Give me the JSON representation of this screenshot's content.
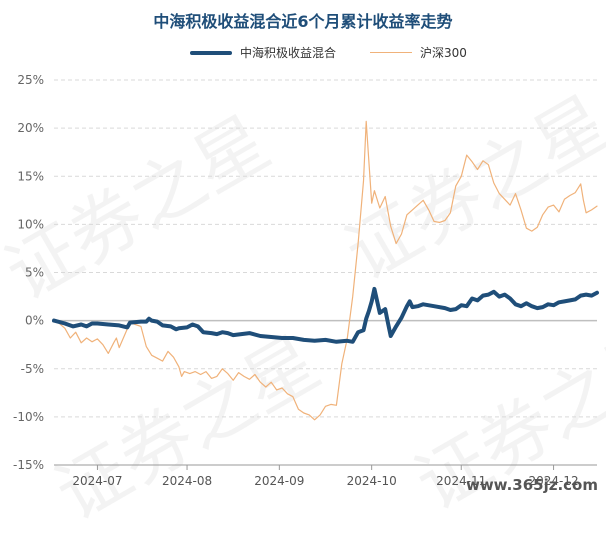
{
  "chart_data": {
    "type": "line",
    "title": "中海积极收益混合近6个月累计收益率走势",
    "ylim": [
      -15,
      25
    ],
    "yticks": [
      25,
      20,
      15,
      10,
      5,
      0,
      -5,
      -10,
      -15
    ],
    "ytick_labels": [
      "25%",
      "20%",
      "15%",
      "10%",
      "5%",
      "0%",
      "-5%",
      "-10%",
      "-15%"
    ],
    "xticks": [
      {
        "label": "2024-07",
        "pos": 0.08
      },
      {
        "label": "2024-08",
        "pos": 0.245
      },
      {
        "label": "2024-09",
        "pos": 0.415
      },
      {
        "label": "2024-10",
        "pos": 0.585
      },
      {
        "label": "2024-11",
        "pos": 0.75
      },
      {
        "label": "2024-12",
        "pos": 0.92
      }
    ],
    "grid": true,
    "legend_position": "top-center",
    "series": [
      {
        "name": "中海积极收益混合",
        "color": "#1f4e79",
        "values": [
          [
            0,
            0
          ],
          [
            0.02,
            -0.3
          ],
          [
            0.035,
            -0.6
          ],
          [
            0.05,
            -0.4
          ],
          [
            0.06,
            -0.6
          ],
          [
            0.07,
            -0.3
          ],
          [
            0.08,
            -0.3
          ],
          [
            0.1,
            -0.4
          ],
          [
            0.12,
            -0.5
          ],
          [
            0.135,
            -0.7
          ],
          [
            0.14,
            -0.2
          ],
          [
            0.16,
            -0.1
          ],
          [
            0.17,
            -0.1
          ],
          [
            0.175,
            0.2
          ],
          [
            0.18,
            0.0
          ],
          [
            0.19,
            -0.1
          ],
          [
            0.2,
            -0.5
          ],
          [
            0.215,
            -0.6
          ],
          [
            0.225,
            -0.9
          ],
          [
            0.23,
            -0.8
          ],
          [
            0.245,
            -0.7
          ],
          [
            0.255,
            -0.4
          ],
          [
            0.265,
            -0.6
          ],
          [
            0.275,
            -1.2
          ],
          [
            0.29,
            -1.3
          ],
          [
            0.3,
            -1.4
          ],
          [
            0.31,
            -1.2
          ],
          [
            0.32,
            -1.3
          ],
          [
            0.33,
            -1.5
          ],
          [
            0.345,
            -1.4
          ],
          [
            0.36,
            -1.3
          ],
          [
            0.38,
            -1.6
          ],
          [
            0.4,
            -1.7
          ],
          [
            0.42,
            -1.8
          ],
          [
            0.44,
            -1.8
          ],
          [
            0.46,
            -2.0
          ],
          [
            0.48,
            -2.1
          ],
          [
            0.5,
            -2.0
          ],
          [
            0.52,
            -2.2
          ],
          [
            0.54,
            -2.1
          ],
          [
            0.55,
            -2.2
          ],
          [
            0.56,
            -1.2
          ],
          [
            0.57,
            -1.0
          ],
          [
            0.575,
            0.2
          ],
          [
            0.58,
            1.0
          ],
          [
            0.585,
            2.0
          ],
          [
            0.59,
            3.3
          ],
          [
            0.6,
            0.8
          ],
          [
            0.61,
            1.2
          ],
          [
            0.615,
            -0.2
          ],
          [
            0.62,
            -1.6
          ],
          [
            0.63,
            -0.6
          ],
          [
            0.64,
            0.3
          ],
          [
            0.65,
            1.5
          ],
          [
            0.655,
            2.0
          ],
          [
            0.66,
            1.4
          ],
          [
            0.67,
            1.5
          ],
          [
            0.68,
            1.7
          ],
          [
            0.7,
            1.5
          ],
          [
            0.72,
            1.3
          ],
          [
            0.73,
            1.1
          ],
          [
            0.74,
            1.2
          ],
          [
            0.75,
            1.6
          ],
          [
            0.76,
            1.5
          ],
          [
            0.77,
            2.3
          ],
          [
            0.78,
            2.1
          ],
          [
            0.79,
            2.6
          ],
          [
            0.8,
            2.7
          ],
          [
            0.81,
            3.0
          ],
          [
            0.82,
            2.5
          ],
          [
            0.83,
            2.7
          ],
          [
            0.84,
            2.3
          ],
          [
            0.85,
            1.7
          ],
          [
            0.86,
            1.5
          ],
          [
            0.87,
            1.8
          ],
          [
            0.88,
            1.5
          ],
          [
            0.89,
            1.3
          ],
          [
            0.9,
            1.4
          ],
          [
            0.91,
            1.7
          ],
          [
            0.92,
            1.6
          ],
          [
            0.93,
            1.9
          ],
          [
            0.94,
            2.0
          ],
          [
            0.95,
            2.1
          ],
          [
            0.96,
            2.2
          ],
          [
            0.97,
            2.6
          ],
          [
            0.98,
            2.7
          ],
          [
            0.99,
            2.6
          ],
          [
            1.0,
            2.9
          ]
        ]
      },
      {
        "name": "沪深300",
        "color": "#f0b27a",
        "values": [
          [
            0,
            0
          ],
          [
            0.01,
            -0.3
          ],
          [
            0.02,
            -0.8
          ],
          [
            0.03,
            -1.8
          ],
          [
            0.04,
            -1.2
          ],
          [
            0.05,
            -2.3
          ],
          [
            0.06,
            -1.8
          ],
          [
            0.07,
            -2.2
          ],
          [
            0.08,
            -1.9
          ],
          [
            0.09,
            -2.5
          ],
          [
            0.1,
            -3.4
          ],
          [
            0.11,
            -2.3
          ],
          [
            0.115,
            -1.8
          ],
          [
            0.12,
            -2.8
          ],
          [
            0.13,
            -1.5
          ],
          [
            0.14,
            -0.2
          ],
          [
            0.15,
            -0.4
          ],
          [
            0.16,
            -0.6
          ],
          [
            0.17,
            -2.7
          ],
          [
            0.18,
            -3.6
          ],
          [
            0.19,
            -3.9
          ],
          [
            0.2,
            -4.2
          ],
          [
            0.21,
            -3.2
          ],
          [
            0.22,
            -3.8
          ],
          [
            0.23,
            -4.8
          ],
          [
            0.235,
            -5.8
          ],
          [
            0.24,
            -5.3
          ],
          [
            0.25,
            -5.5
          ],
          [
            0.26,
            -5.3
          ],
          [
            0.27,
            -5.6
          ],
          [
            0.28,
            -5.3
          ],
          [
            0.29,
            -6.0
          ],
          [
            0.3,
            -5.8
          ],
          [
            0.31,
            -5.0
          ],
          [
            0.32,
            -5.5
          ],
          [
            0.33,
            -6.2
          ],
          [
            0.34,
            -5.4
          ],
          [
            0.35,
            -5.8
          ],
          [
            0.36,
            -6.1
          ],
          [
            0.37,
            -5.6
          ],
          [
            0.38,
            -6.4
          ],
          [
            0.39,
            -6.9
          ],
          [
            0.4,
            -6.4
          ],
          [
            0.41,
            -7.2
          ],
          [
            0.42,
            -7.0
          ],
          [
            0.43,
            -7.6
          ],
          [
            0.44,
            -7.9
          ],
          [
            0.45,
            -9.2
          ],
          [
            0.46,
            -9.6
          ],
          [
            0.47,
            -9.8
          ],
          [
            0.48,
            -10.3
          ],
          [
            0.49,
            -9.8
          ],
          [
            0.5,
            -8.9
          ],
          [
            0.51,
            -8.7
          ],
          [
            0.52,
            -8.8
          ],
          [
            0.53,
            -4.5
          ],
          [
            0.54,
            -1.9
          ],
          [
            0.55,
            2.5
          ],
          [
            0.56,
            8.0
          ],
          [
            0.57,
            14.5
          ],
          [
            0.575,
            20.7
          ],
          [
            0.58,
            16.5
          ],
          [
            0.585,
            12.2
          ],
          [
            0.59,
            13.5
          ],
          [
            0.6,
            11.7
          ],
          [
            0.61,
            12.9
          ],
          [
            0.62,
            9.8
          ],
          [
            0.63,
            8.0
          ],
          [
            0.64,
            9.0
          ],
          [
            0.65,
            11.0
          ],
          [
            0.66,
            11.5
          ],
          [
            0.67,
            12.0
          ],
          [
            0.68,
            12.5
          ],
          [
            0.69,
            11.5
          ],
          [
            0.7,
            10.3
          ],
          [
            0.71,
            10.2
          ],
          [
            0.72,
            10.4
          ],
          [
            0.73,
            11.2
          ],
          [
            0.74,
            14.0
          ],
          [
            0.75,
            15.0
          ],
          [
            0.76,
            17.2
          ],
          [
            0.77,
            16.5
          ],
          [
            0.78,
            15.7
          ],
          [
            0.79,
            16.6
          ],
          [
            0.8,
            16.2
          ],
          [
            0.81,
            14.3
          ],
          [
            0.82,
            13.2
          ],
          [
            0.83,
            12.6
          ],
          [
            0.84,
            12.0
          ],
          [
            0.85,
            13.2
          ],
          [
            0.86,
            11.5
          ],
          [
            0.87,
            9.6
          ],
          [
            0.88,
            9.3
          ],
          [
            0.89,
            9.7
          ],
          [
            0.9,
            11.0
          ],
          [
            0.91,
            11.8
          ],
          [
            0.92,
            12.0
          ],
          [
            0.93,
            11.3
          ],
          [
            0.94,
            12.6
          ],
          [
            0.95,
            13.0
          ],
          [
            0.96,
            13.3
          ],
          [
            0.97,
            14.2
          ],
          [
            0.975,
            12.5
          ],
          [
            0.98,
            11.2
          ],
          [
            0.99,
            11.5
          ],
          [
            1.0,
            11.9
          ]
        ]
      }
    ],
    "watermark": [
      "证券之星",
      "证券之星",
      "证券之星",
      "证券之星"
    ],
    "site_mark": "www.365jz.com"
  }
}
